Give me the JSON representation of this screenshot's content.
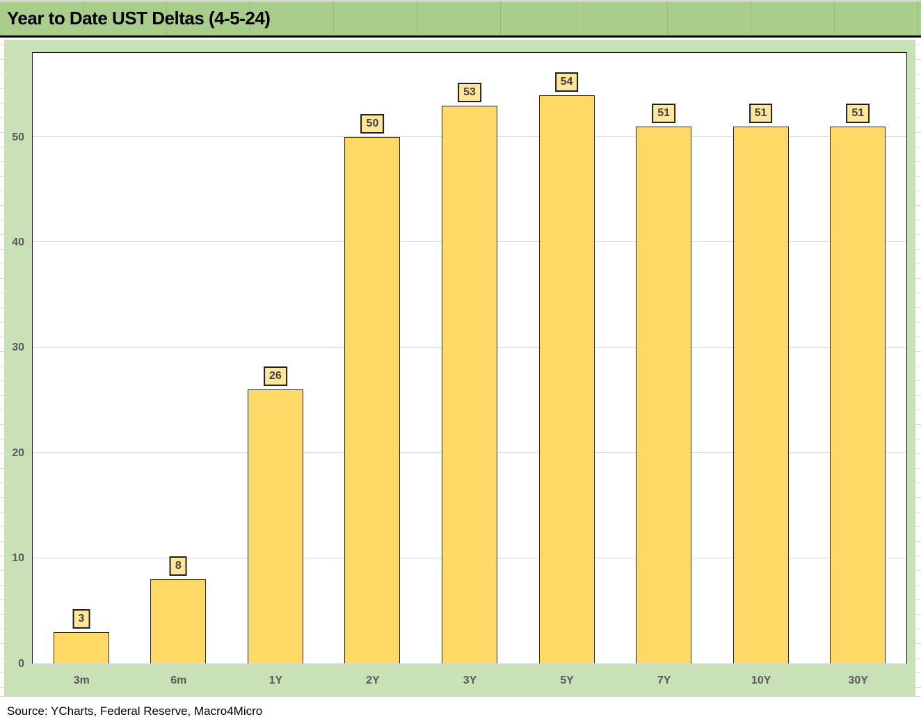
{
  "header": {
    "title": "Year to Date UST Deltas (4-5-24)"
  },
  "footer": {
    "source": "Source: YCharts, Federal Reserve, Macro4Micro"
  },
  "colors": {
    "bar_fill": "#FFD966",
    "bar_border": "#262626",
    "label_box_fill": "#FFE699",
    "label_box_border": "#1F1F1F",
    "label_text": "#404040",
    "axis_text": "#595959",
    "gridline": "#D9D9D9",
    "chart_background": "#C9E1B6",
    "header_background": "#A9CE8C",
    "plot_background": "#FFFFFF"
  },
  "chart_data": {
    "type": "bar",
    "title": "Year to Date UST Deltas (4-5-24)",
    "categories": [
      "3m",
      "6m",
      "1Y",
      "2Y",
      "3Y",
      "5Y",
      "7Y",
      "10Y",
      "30Y"
    ],
    "values": [
      3,
      8,
      26,
      50,
      53,
      54,
      51,
      51,
      51
    ],
    "data_labels": [
      "3",
      "8",
      "26",
      "50",
      "53",
      "54",
      "51",
      "51",
      "51"
    ],
    "y_ticks": [
      0,
      10,
      20,
      30,
      40,
      50
    ],
    "ylim": [
      0,
      58
    ],
    "xlabel": "",
    "ylabel": "",
    "legend": "none",
    "grid": "horizontal",
    "source": "Source: YCharts, Federal Reserve, Macro4Micro"
  }
}
